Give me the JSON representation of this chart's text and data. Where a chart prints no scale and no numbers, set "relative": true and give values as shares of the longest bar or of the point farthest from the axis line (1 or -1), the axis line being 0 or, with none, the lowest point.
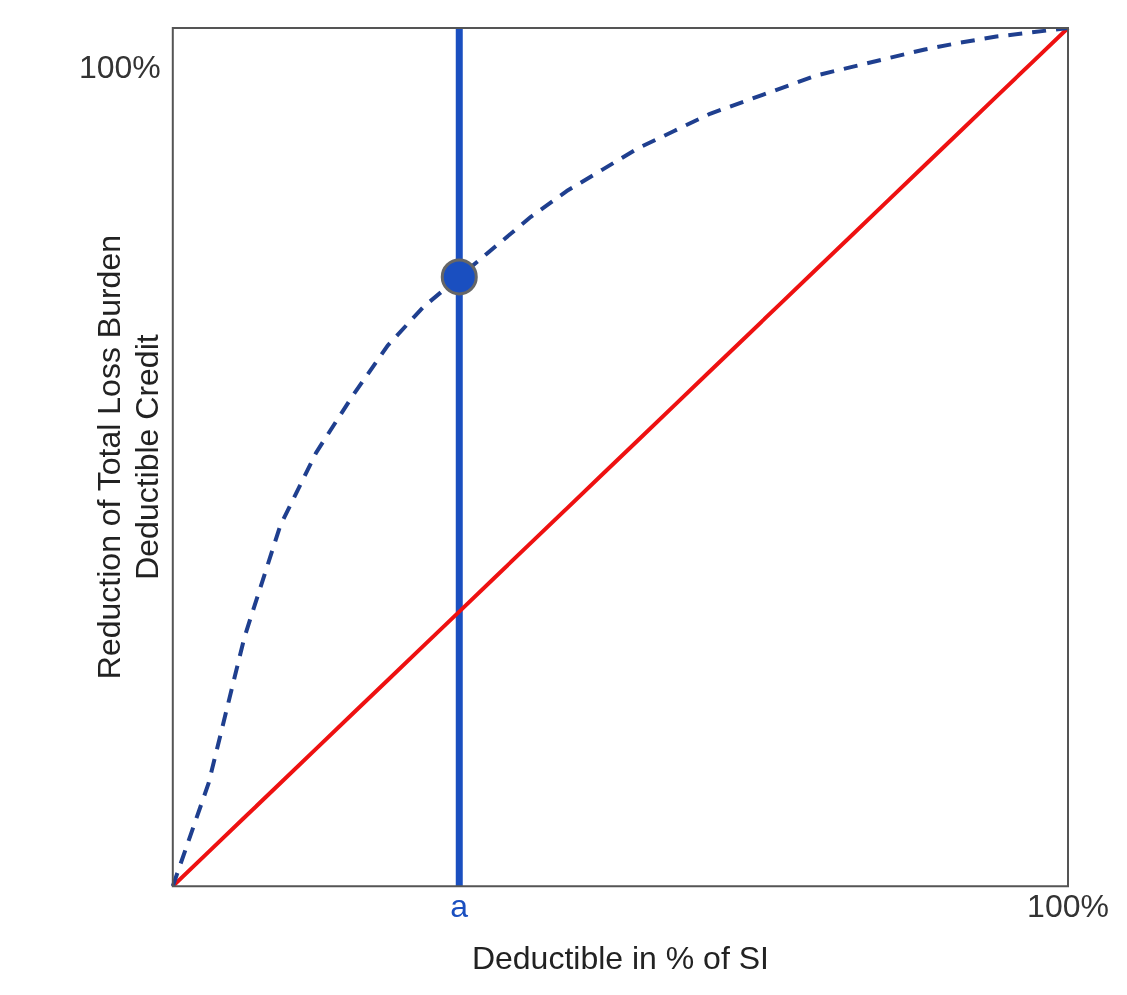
{
  "chart_data": {
    "type": "line",
    "relative": true,
    "xlabel": "Deductible in % of SI",
    "ylabel": "Reduction of Total Loss Burden\nDeductible Credit",
    "legend": false,
    "annotations": [
      "100%"
    ],
    "categories": [
      null,
      null,
      null,
      null,
      null,
      null,
      null,
      null,
      "a",
      null,
      null,
      null,
      null,
      null,
      null,
      null,
      null,
      null,
      null,
      null,
      null,
      null,
      null,
      null,
      null,
      "100%"
    ],
    "series": [
      {
        "color": "#1f3f8f",
        "line_style": "dashed",
        "marker": "none",
        "values": [
          0,
          0.12,
          0.29,
          0.42,
          0.505,
          0.57,
          0.63,
          0.675,
          null,
          0.745,
          0.78,
          0.81,
          0.835,
          0.86,
          0.88,
          0.9,
          0.915,
          0.93,
          0.945,
          0.955,
          0.965,
          0.975,
          0.983,
          0.99,
          0.995,
          1
        ]
      },
      {
        "color": "#ee1111",
        "line_style": "solid",
        "marker": "none",
        "values": [
          0,
          0.04,
          0.08,
          0.12,
          0.16,
          0.2,
          0.24,
          0.28,
          0.32,
          0.36,
          0.4,
          0.44,
          0.48,
          0.52,
          0.56,
          0.6,
          0.64,
          0.68,
          0.72,
          0.76,
          0.8,
          0.84,
          0.88,
          0.92,
          0.96,
          1
        ]
      },
      {
        "type": "scatter",
        "color": "#1a4fc0",
        "marker": "circle",
        "values": [
          null,
          null,
          null,
          null,
          null,
          null,
          null,
          null,
          0.71,
          null,
          null,
          null,
          null,
          null,
          null,
          null,
          null,
          null,
          null,
          null,
          null,
          null,
          null,
          null,
          null,
          null
        ]
      }
    ],
    "ref_lines": [
      {
        "axis": "x",
        "value": "a",
        "color": "#1a4fc0",
        "line_style": "solid"
      }
    ]
  }
}
